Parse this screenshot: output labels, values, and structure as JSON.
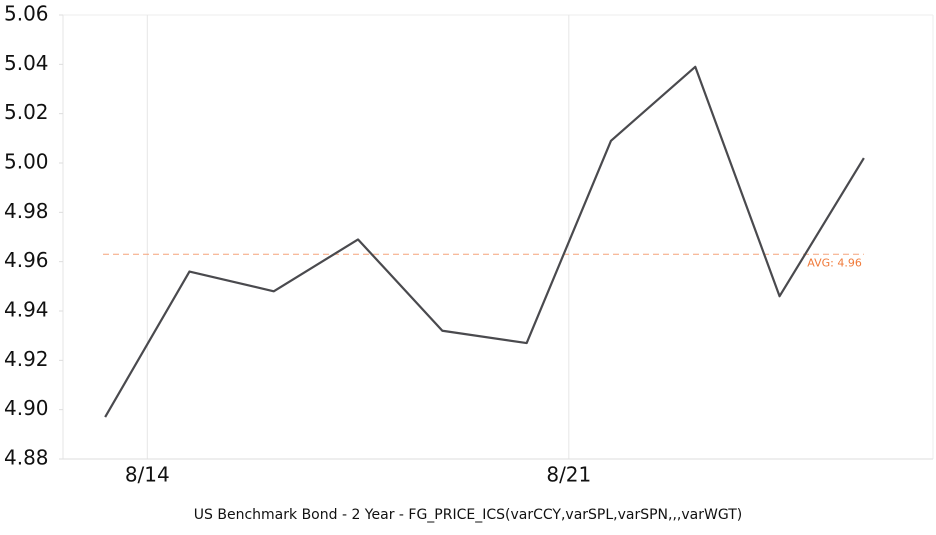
{
  "chart_data": {
    "type": "line",
    "x": [
      0,
      1,
      2,
      3,
      4,
      5,
      6,
      7,
      8,
      9
    ],
    "series": [
      {
        "color": "#4a4a4e",
        "values": [
          4.897,
          4.956,
          4.948,
          4.969,
          4.932,
          4.927,
          5.009,
          5.039,
          4.946,
          5.002
        ]
      }
    ],
    "xlim": [
      -0.5,
      9.82
    ],
    "xticks": [
      {
        "value": 0.5,
        "label": "8/14"
      },
      {
        "value": 5.5,
        "label": "8/21"
      }
    ],
    "ylim": [
      4.88,
      5.06
    ],
    "yticks": [
      4.88,
      {
        "value": 4.9,
        "label": "4.90"
      },
      4.92,
      4.94,
      4.96,
      4.98,
      {
        "value": 5,
        "label": "5.00"
      },
      5.02,
      5.04,
      5.06
    ],
    "x_label": "US Benchmark Bond - 2 Year - FG_PRICE_ICS(varCCY,varSPL,varSPN,,,varWGT)",
    "average": {
      "value": 4.963,
      "label": "AVG:  4.96",
      "color": "#f5a47a"
    },
    "grid": true
  }
}
